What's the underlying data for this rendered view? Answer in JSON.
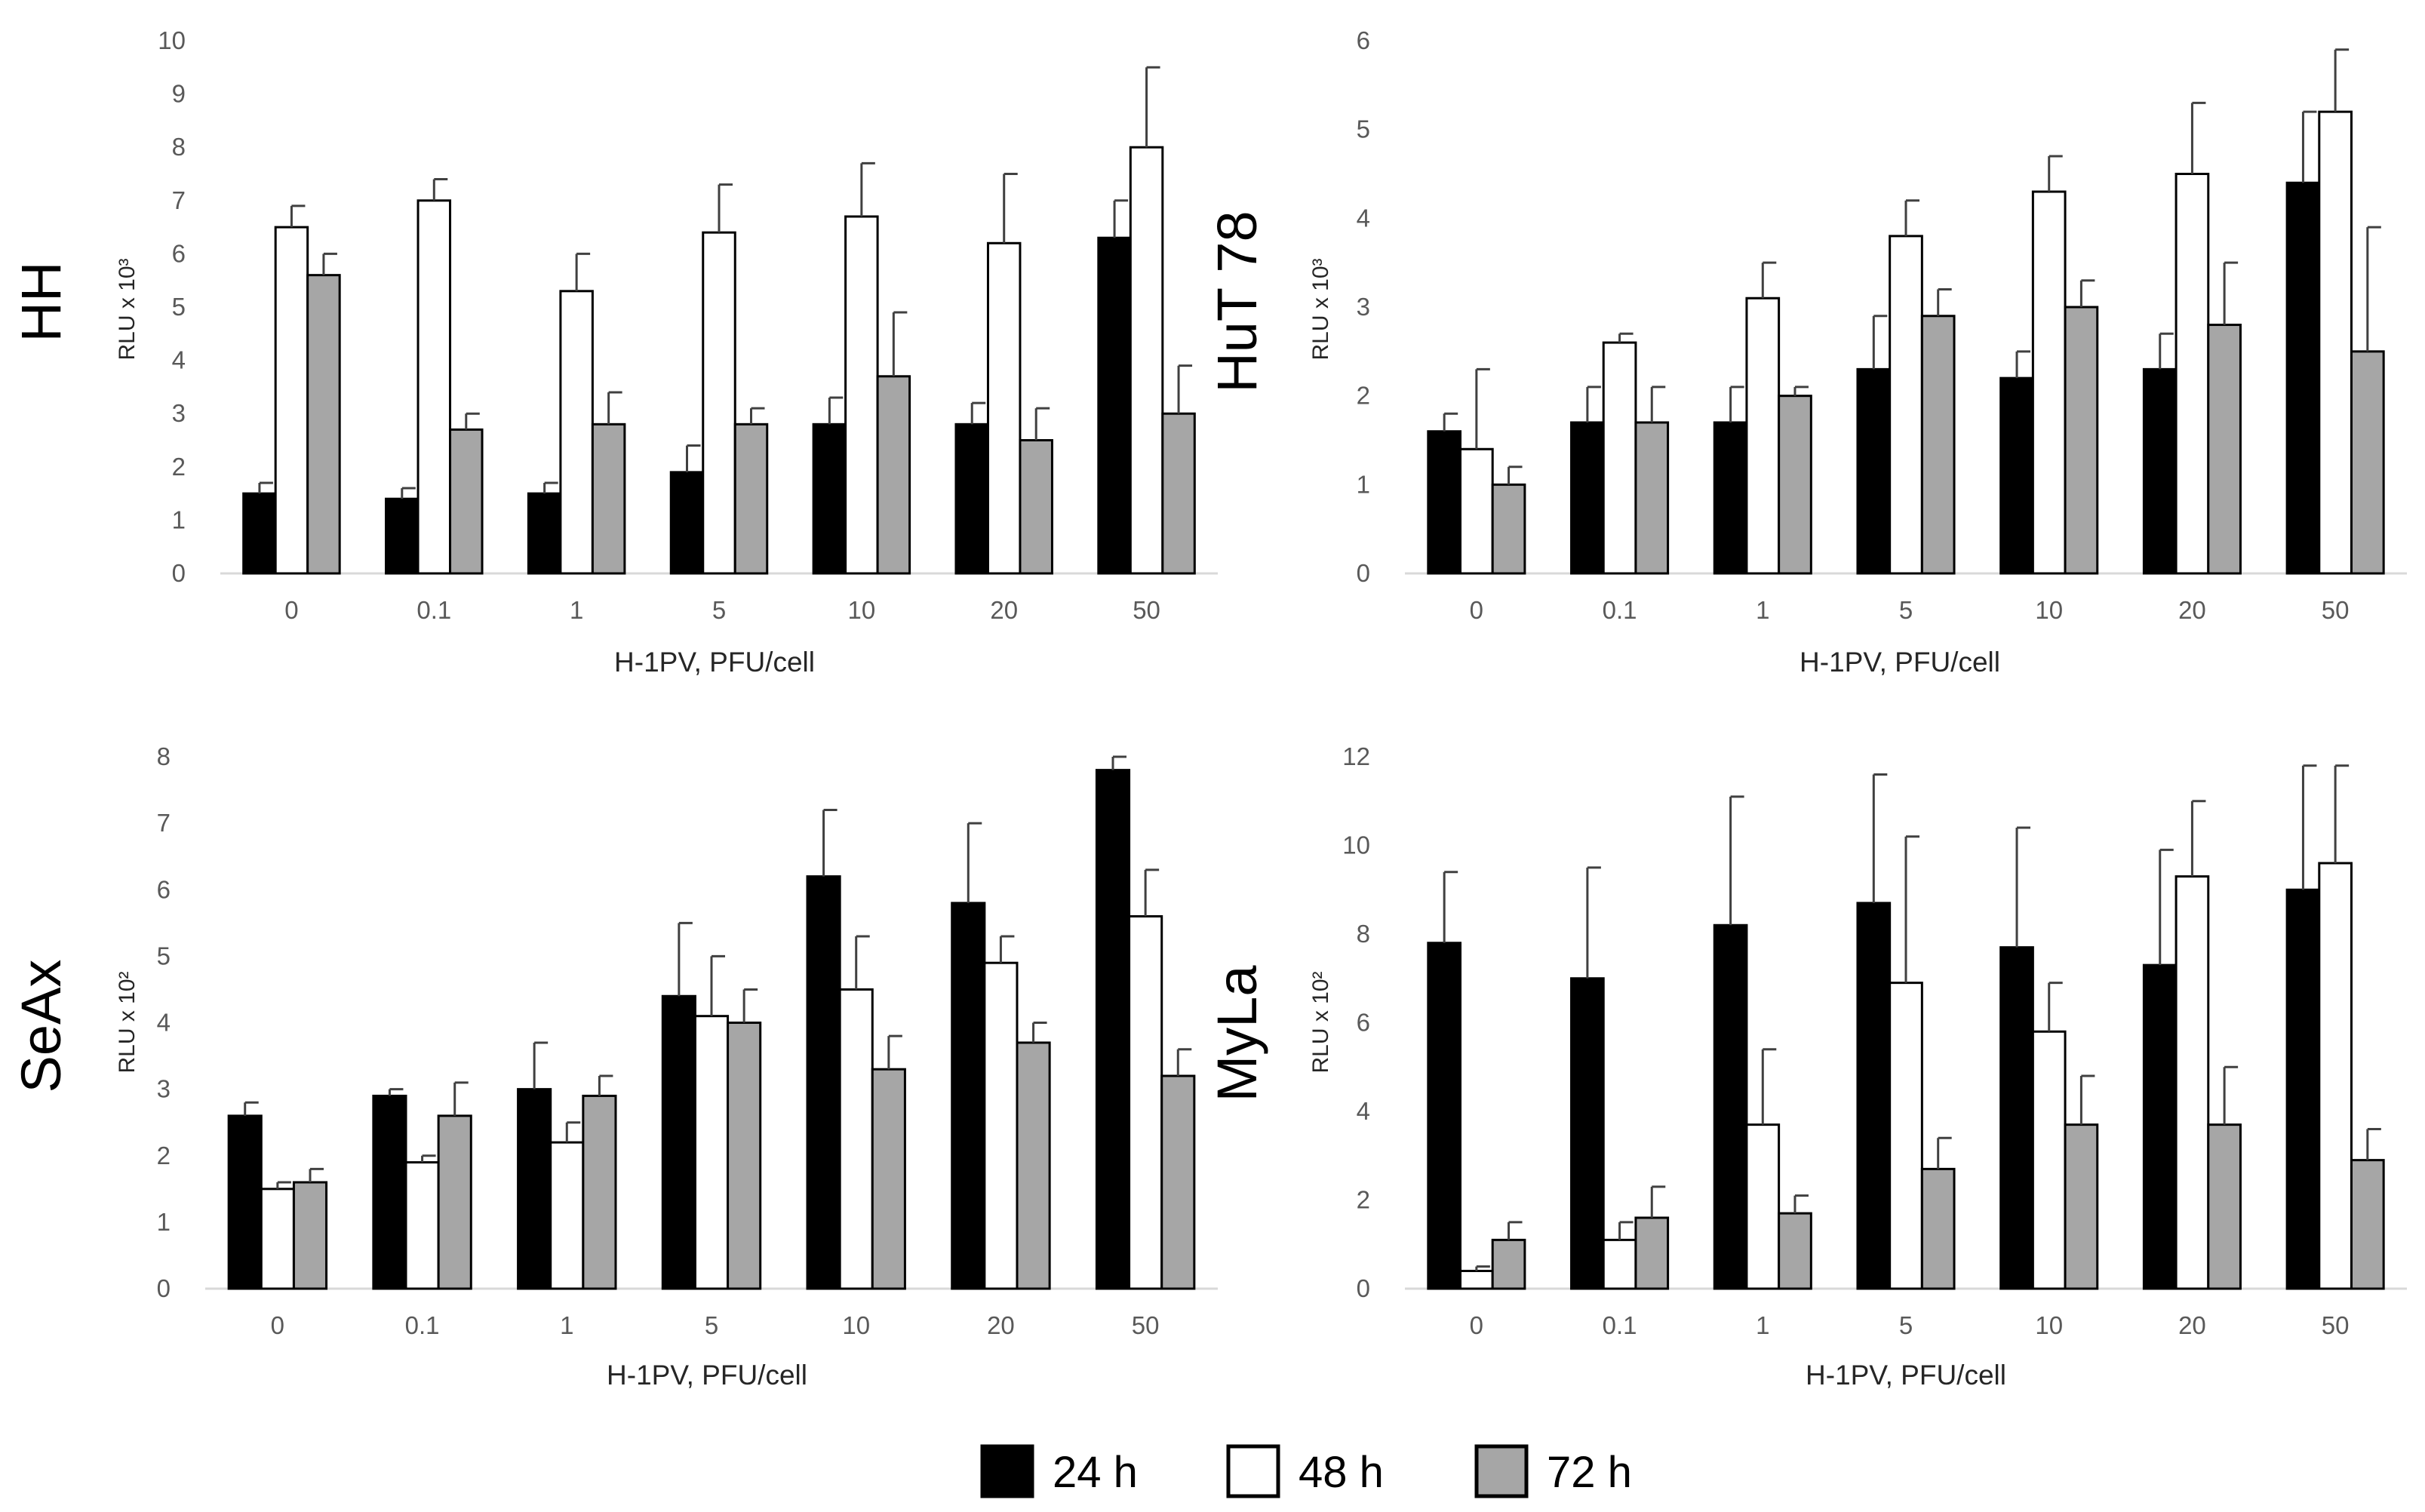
{
  "legend": [
    {
      "label": "24 h",
      "color": "#000000"
    },
    {
      "label": "48 h",
      "color": "#ffffff"
    },
    {
      "label": "72 h",
      "color": "#a6a6a6"
    }
  ],
  "chart_data": [
    {
      "type": "bar",
      "panel_label": "HH",
      "ylabel": "RLU x 10³",
      "xlabel": "H-1PV, PFU/cell",
      "categories": [
        "0",
        "0.1",
        "1",
        "5",
        "10",
        "20",
        "50"
      ],
      "ylim": [
        0,
        10
      ],
      "yticks": [
        0,
        1,
        2,
        3,
        4,
        5,
        6,
        7,
        8,
        9,
        10
      ],
      "series": [
        {
          "name": "24 h",
          "color": "#000000",
          "values": [
            1.5,
            1.4,
            1.5,
            1.9,
            2.8,
            2.8,
            6.3
          ],
          "errors": [
            0.2,
            0.2,
            0.2,
            0.5,
            0.5,
            0.4,
            0.7
          ]
        },
        {
          "name": "48 h",
          "color": "#ffffff",
          "values": [
            6.5,
            7.0,
            5.3,
            6.4,
            6.7,
            6.2,
            8.0
          ],
          "errors": [
            0.4,
            0.4,
            0.7,
            0.9,
            1.0,
            1.3,
            1.5
          ]
        },
        {
          "name": "72 h",
          "color": "#a6a6a6",
          "values": [
            5.6,
            2.7,
            2.8,
            2.8,
            3.7,
            2.5,
            3.0
          ],
          "errors": [
            0.4,
            0.3,
            0.6,
            0.3,
            1.2,
            0.6,
            0.9
          ]
        }
      ]
    },
    {
      "type": "bar",
      "panel_label": "HuT 78",
      "ylabel": "RLU x 10³",
      "xlabel": "H-1PV, PFU/cell",
      "categories": [
        "0",
        "0.1",
        "1",
        "5",
        "10",
        "20",
        "50"
      ],
      "ylim": [
        0,
        6
      ],
      "yticks": [
        0,
        1,
        2,
        3,
        4,
        5,
        6
      ],
      "series": [
        {
          "name": "24 h",
          "color": "#000000",
          "values": [
            1.6,
            1.7,
            1.7,
            2.3,
            2.2,
            2.3,
            4.4
          ],
          "errors": [
            0.2,
            0.4,
            0.4,
            0.6,
            0.3,
            0.4,
            0.8
          ]
        },
        {
          "name": "48 h",
          "color": "#ffffff",
          "values": [
            1.4,
            2.6,
            3.1,
            3.8,
            4.3,
            4.5,
            5.2
          ],
          "errors": [
            0.9,
            0.1,
            0.4,
            0.4,
            0.4,
            0.8,
            0.7
          ]
        },
        {
          "name": "72 h",
          "color": "#a6a6a6",
          "values": [
            1.0,
            1.7,
            2.0,
            2.9,
            3.0,
            2.8,
            2.5
          ],
          "errors": [
            0.2,
            0.4,
            0.1,
            0.3,
            0.3,
            0.7,
            1.4
          ]
        }
      ]
    },
    {
      "type": "bar",
      "panel_label": "SeAx",
      "ylabel": "RLU x 10²",
      "xlabel": "H-1PV, PFU/cell",
      "categories": [
        "0",
        "0.1",
        "1",
        "5",
        "10",
        "20",
        "50"
      ],
      "ylim": [
        0,
        8
      ],
      "yticks": [
        0,
        1,
        2,
        3,
        4,
        5,
        6,
        7,
        8
      ],
      "series": [
        {
          "name": "24 h",
          "color": "#000000",
          "values": [
            2.6,
            2.9,
            3.0,
            4.4,
            6.2,
            5.8,
            7.8
          ],
          "errors": [
            0.2,
            0.1,
            0.7,
            1.1,
            1.0,
            1.2,
            0.2
          ]
        },
        {
          "name": "48 h",
          "color": "#ffffff",
          "values": [
            1.5,
            1.9,
            2.2,
            4.1,
            4.5,
            4.9,
            5.6
          ],
          "errors": [
            0.1,
            0.1,
            0.3,
            0.9,
            0.8,
            0.4,
            0.7
          ]
        },
        {
          "name": "72 h",
          "color": "#a6a6a6",
          "values": [
            1.6,
            2.6,
            2.9,
            4.0,
            3.3,
            3.7,
            3.2
          ],
          "errors": [
            0.2,
            0.5,
            0.3,
            0.5,
            0.5,
            0.3,
            0.4
          ]
        }
      ]
    },
    {
      "type": "bar",
      "panel_label": "MyLa",
      "ylabel": "RLU x 10²",
      "xlabel": "H-1PV, PFU/cell",
      "categories": [
        "0",
        "0.1",
        "1",
        "5",
        "10",
        "20",
        "50"
      ],
      "ylim": [
        0,
        12
      ],
      "yticks": [
        0,
        2,
        4,
        6,
        8,
        10,
        12
      ],
      "series": [
        {
          "name": "24 h",
          "color": "#000000",
          "values": [
            7.8,
            7.0,
            8.2,
            8.7,
            7.7,
            7.3,
            9.0
          ],
          "errors": [
            1.6,
            2.5,
            2.9,
            2.9,
            2.7,
            2.6,
            2.8
          ]
        },
        {
          "name": "48 h",
          "color": "#ffffff",
          "values": [
            0.4,
            1.1,
            3.7,
            6.9,
            5.8,
            9.3,
            9.6
          ],
          "errors": [
            0.1,
            0.4,
            1.7,
            3.3,
            1.1,
            1.7,
            2.2
          ]
        },
        {
          "name": "72 h",
          "color": "#a6a6a6",
          "values": [
            1.1,
            1.6,
            1.7,
            2.7,
            3.7,
            3.7,
            2.9
          ],
          "errors": [
            0.4,
            0.7,
            0.4,
            0.7,
            1.1,
            1.3,
            0.7
          ]
        }
      ]
    }
  ]
}
